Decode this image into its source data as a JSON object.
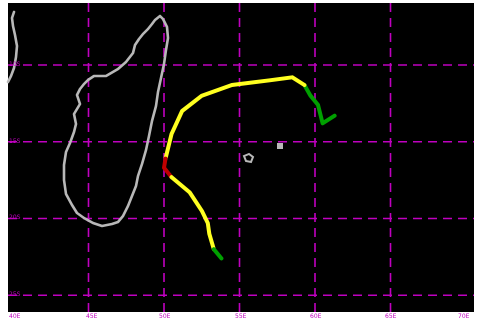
{
  "map": {
    "background_color": "#000000",
    "grid_color": "#c000c0",
    "coastline_color": "#b8b8b8",
    "latitude_labels": [
      "10S",
      "15S",
      "20S",
      "25S"
    ],
    "longitude_labels": [
      "40E",
      "45E",
      "50E",
      "55E",
      "60E",
      "65E",
      "70E"
    ],
    "features": [
      {
        "name": "Madagascar coastline",
        "type": "coastline"
      },
      {
        "name": "African coastline",
        "type": "coastline"
      },
      {
        "name": "Reunion island",
        "type": "island"
      },
      {
        "name": "Mauritius island",
        "type": "island"
      }
    ],
    "storm_track": {
      "intensity_colors": {
        "green": "#00a000",
        "yellow": "#ffff20",
        "red": "#c00000"
      },
      "segments": [
        {
          "color": "green",
          "points": [
            [
              61.3,
              -13.3
            ],
            [
              60.5,
              -13.8
            ],
            [
              60.2,
              -12.6
            ],
            [
              59.7,
              -12.0
            ],
            [
              59.3,
              -11.3
            ]
          ]
        },
        {
          "color": "yellow",
          "points": [
            [
              59.3,
              -11.3
            ],
            [
              58.5,
              -10.8
            ],
            [
              57.0,
              -11.0
            ],
            [
              54.5,
              -11.3
            ],
            [
              52.5,
              -12.0
            ],
            [
              51.2,
              -13.0
            ],
            [
              50.5,
              -14.5
            ],
            [
              50.1,
              -16.1
            ]
          ]
        },
        {
          "color": "red",
          "points": [
            [
              50.1,
              -16.1
            ],
            [
              50.0,
              -16.7
            ],
            [
              50.5,
              -17.3
            ]
          ]
        },
        {
          "color": "yellow",
          "points": [
            [
              50.5,
              -17.3
            ],
            [
              51.7,
              -18.3
            ],
            [
              52.5,
              -19.5
            ],
            [
              52.9,
              -20.3
            ],
            [
              53.0,
              -21.0
            ],
            [
              53.3,
              -22.0
            ]
          ]
        },
        {
          "color": "green",
          "points": [
            [
              53.3,
              -22.0
            ],
            [
              53.8,
              -22.6
            ]
          ]
        }
      ]
    }
  }
}
